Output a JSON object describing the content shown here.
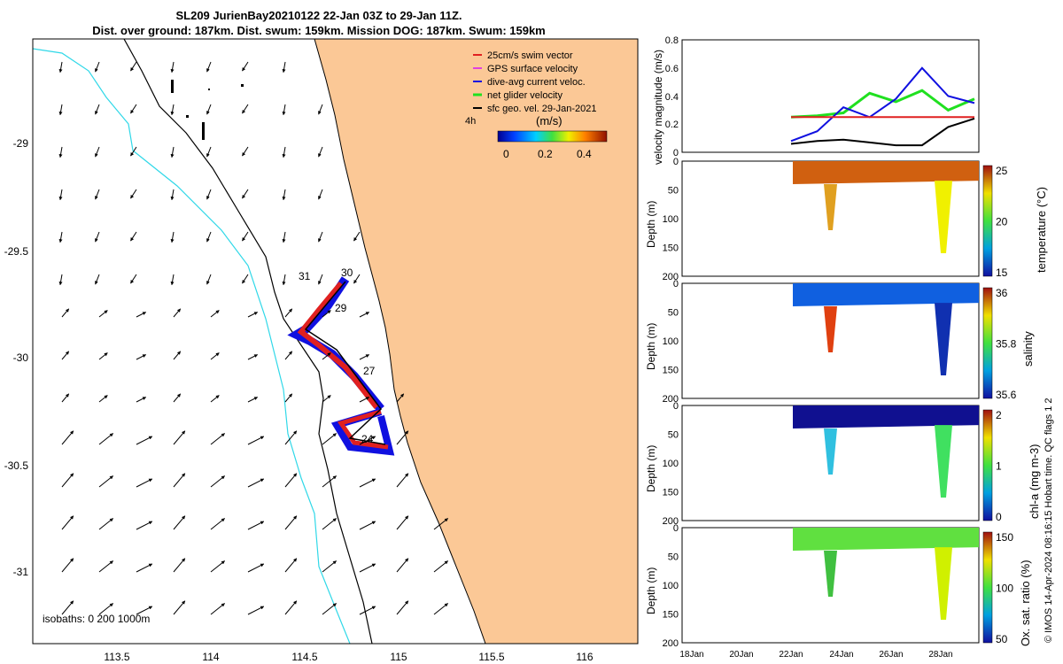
{
  "titles": {
    "line1": "SL209 JurienBay20210122 22-Jan 03Z to 29-Jan 11Z.",
    "line2": "Dist. over ground: 187km. Dist. swum: 159km. Mission DOG: 187km. Swum: 159km"
  },
  "map": {
    "legend": [
      {
        "label": "25cm/s swim vector",
        "color": "#e02020"
      },
      {
        "label": "GPS surface velocity",
        "color": "#e040e0"
      },
      {
        "label": "dive-avg current veloc.",
        "color": "#1010e0"
      },
      {
        "label": "net glider velocity",
        "color": "#20e020"
      },
      {
        "label": "sfc geo. vel. 29-Jan-2021",
        "color": "#000000"
      }
    ],
    "time_label": "4h",
    "colorbar_unit": "(m/s)",
    "colorbar_ticks": [
      "0",
      "0.2",
      "0.4"
    ],
    "isobath_label": "isobaths: 0   200  1000m",
    "xticks": [
      "113.5",
      "114",
      "114.5",
      "115",
      "115.5",
      "116"
    ],
    "yticks": [
      "-29",
      "-29.5",
      "-30",
      "-30.5",
      "-31"
    ],
    "day_labels": [
      "31",
      "30",
      "29",
      "27",
      "24"
    ],
    "colors": {
      "land": "#fbc896",
      "isobath_200": "#30d8e8",
      "coast": "#000000"
    }
  },
  "velocity_panel": {
    "ylabel": "velocity magnitude (m/s)",
    "yticks": [
      "0",
      "0.2",
      "0.4",
      "0.6",
      "0.8"
    ]
  },
  "section_panels": [
    {
      "cbar_label": "temperature (°C)",
      "cbar_ticks": [
        "15",
        "20",
        "25"
      ]
    },
    {
      "cbar_label": "salinity",
      "cbar_ticks": [
        "35.6",
        "35.8",
        "36"
      ]
    },
    {
      "cbar_label": "chl-a (mg m-3)",
      "cbar_ticks": [
        "0",
        "1",
        "2"
      ]
    },
    {
      "cbar_label": "Ox. sat. ratio (%)",
      "cbar_ticks": [
        "50",
        "100",
        "150"
      ]
    }
  ],
  "depth_label": "Depth (m)",
  "depth_ticks": [
    "0",
    "50",
    "100",
    "150",
    "200"
  ],
  "time_ticks": [
    "18Jan",
    "20Jan",
    "22Jan",
    "24Jan",
    "26Jan",
    "28Jan"
  ],
  "footer": "© IMOS 14-Apr-2024 08:16:15 Hobart time. QC flags 1  2",
  "chart_data": {
    "type": "line",
    "title": "SL209 JurienBay20210122 22-Jan 03Z to 29-Jan 11Z.",
    "ylabel": "velocity magnitude (m/s)",
    "ylim": [
      0,
      0.8
    ],
    "x": [
      "22Jan",
      "23Jan",
      "24Jan",
      "25Jan",
      "26Jan",
      "27Jan",
      "28Jan",
      "29Jan"
    ],
    "series": [
      {
        "name": "net glider velocity",
        "color": "#20e020",
        "values": [
          0.25,
          0.26,
          0.28,
          0.42,
          0.36,
          0.44,
          0.3,
          0.38
        ]
      },
      {
        "name": "dive-avg current veloc.",
        "color": "#1010e0",
        "values": [
          0.08,
          0.15,
          0.32,
          0.25,
          0.38,
          0.6,
          0.4,
          0.35
        ]
      },
      {
        "name": "25cm/s swim vector",
        "color": "#e02020",
        "values": [
          0.25,
          0.25,
          0.25,
          0.25,
          0.25,
          0.25,
          0.25,
          0.25
        ]
      },
      {
        "name": "sfc geo. vel. 29-Jan-2021",
        "color": "#000000",
        "values": [
          0.06,
          0.08,
          0.09,
          0.07,
          0.05,
          0.05,
          0.18,
          0.24
        ]
      }
    ]
  }
}
